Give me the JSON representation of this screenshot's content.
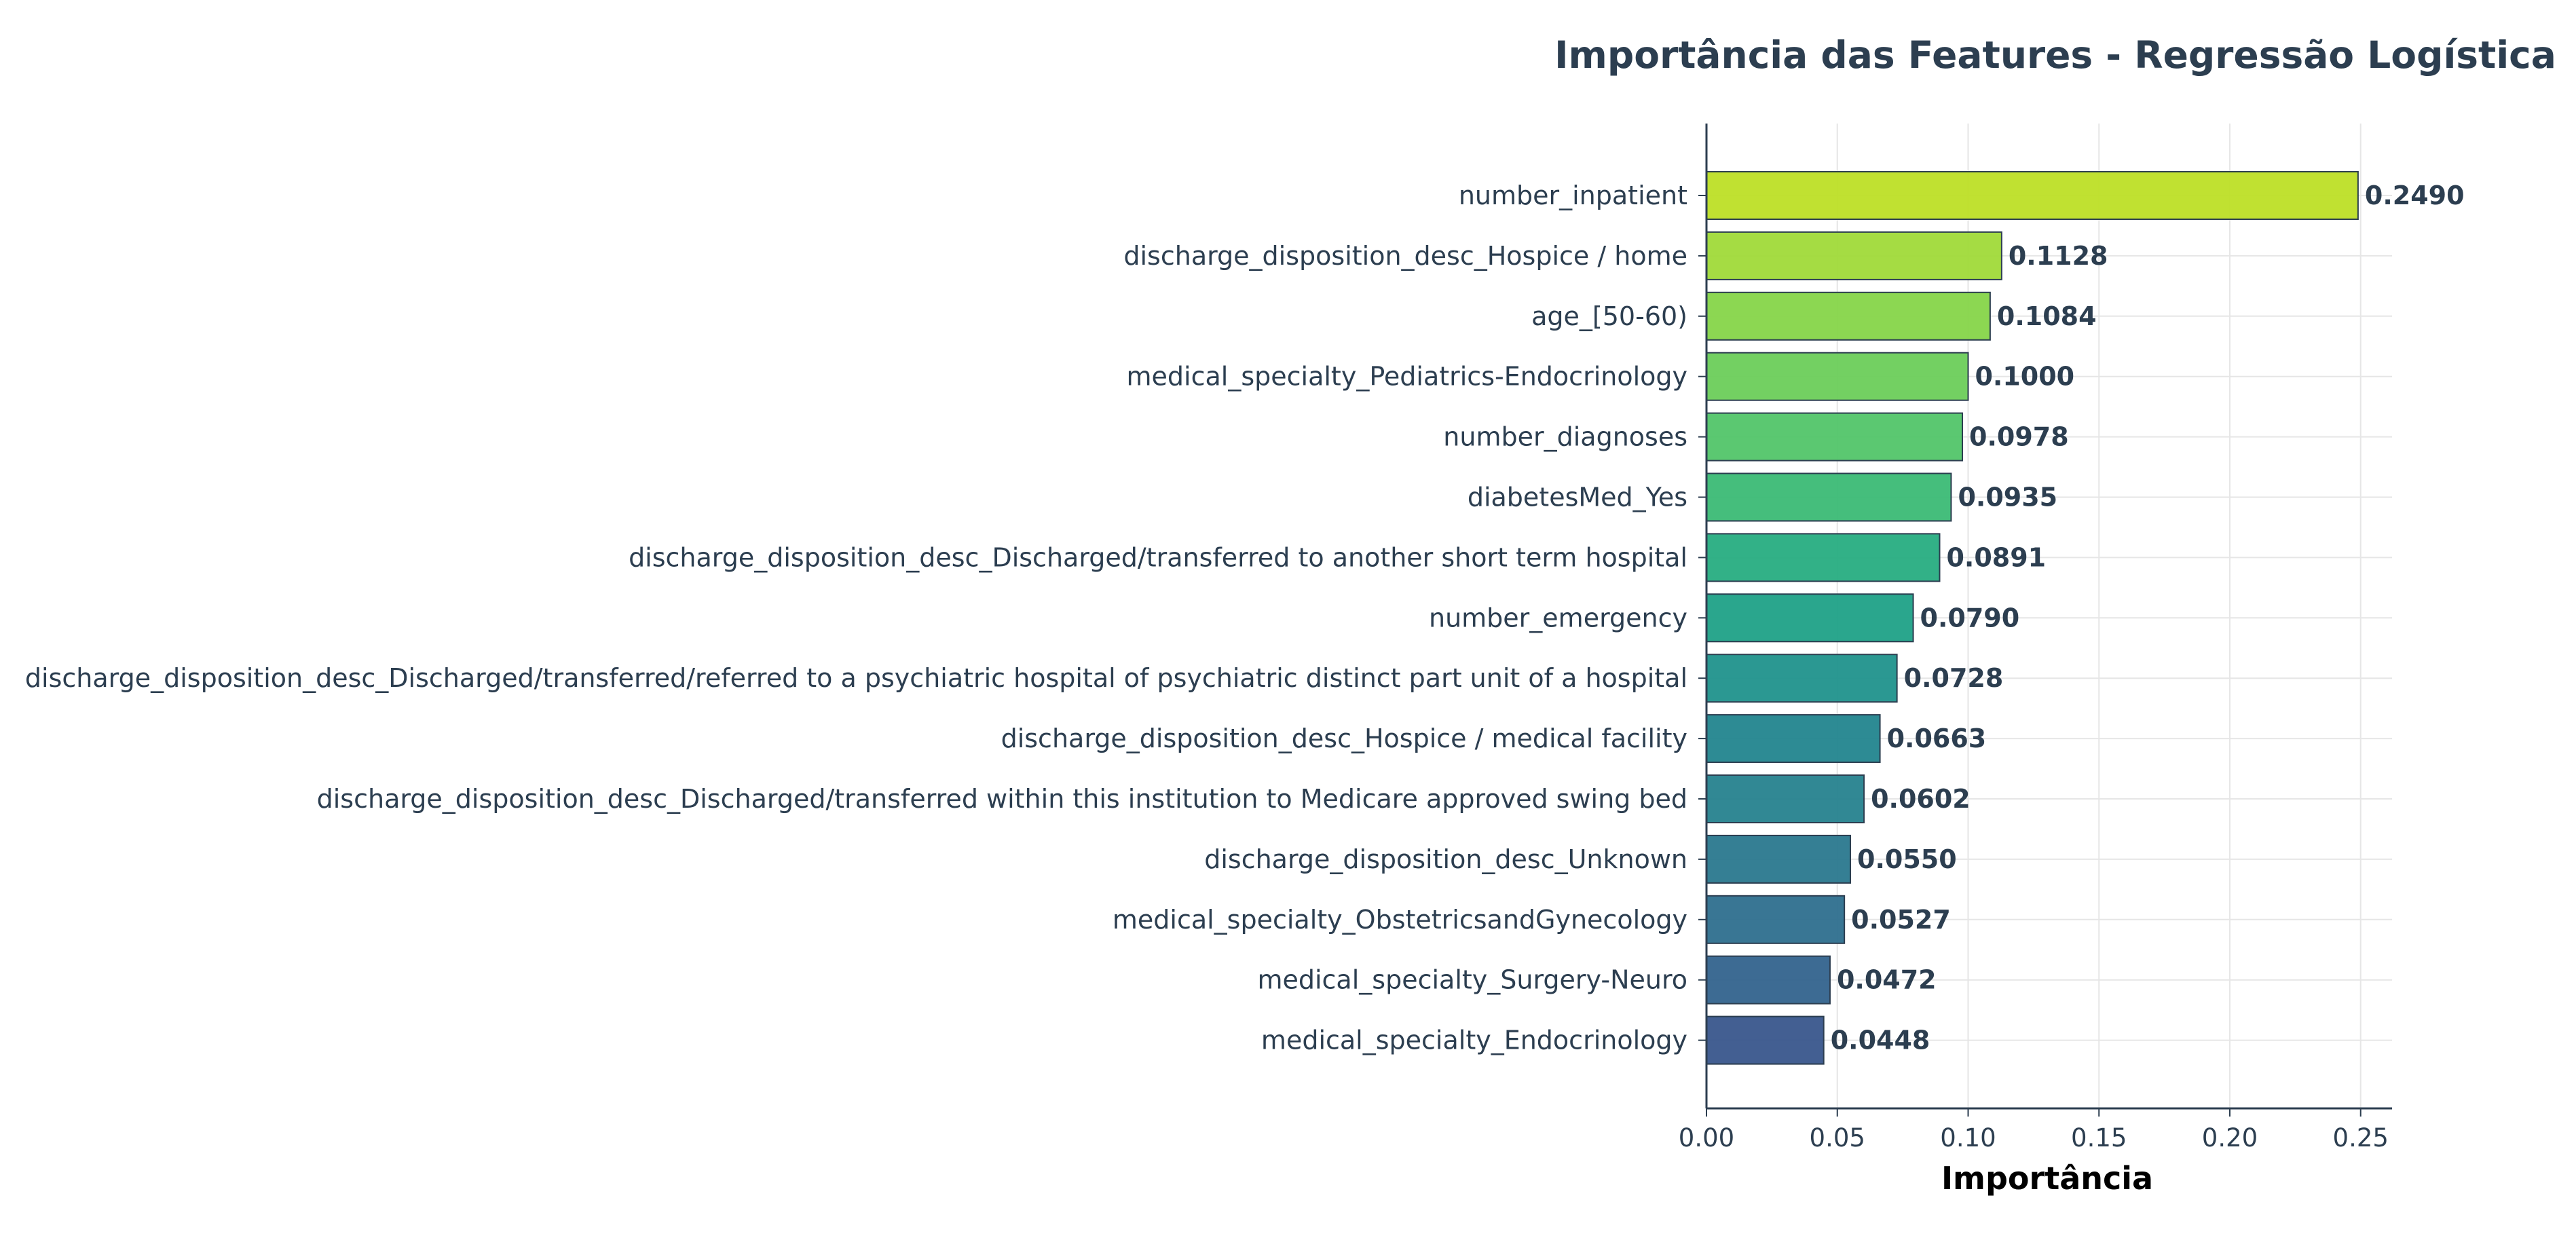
{
  "chart_data": {
    "type": "bar",
    "orientation": "horizontal",
    "title": "Importância das Features - Regressão Logística",
    "xlabel": "Importância",
    "ylabel": "",
    "xlim": [
      0,
      0.262
    ],
    "xticks": [
      0.0,
      0.05,
      0.1,
      0.15,
      0.2,
      0.25
    ],
    "xtick_labels": [
      "0.00",
      "0.05",
      "0.10",
      "0.15",
      "0.20",
      "0.25"
    ],
    "grid": true,
    "categories": [
      "number_inpatient",
      "discharge_disposition_desc_Hospice / home",
      "age_[50-60)",
      "medical_specialty_Pediatrics-Endocrinology",
      "number_diagnoses",
      "diabetesMed_Yes",
      "discharge_disposition_desc_Discharged/transferred to another short term hospital",
      "number_emergency",
      "discharge_disposition_desc_Discharged/transferred/referred to a psychiatric hospital of psychiatric distinct part unit of a hospital",
      "discharge_disposition_desc_Hospice / medical facility",
      "discharge_disposition_desc_Discharged/transferred within this institution to Medicare approved swing bed",
      "discharge_disposition_desc_Unknown",
      "medical_specialty_ObstetricsandGynecology",
      "medical_specialty_Surgery-Neuro",
      "medical_specialty_Endocrinology"
    ],
    "values": [
      0.249,
      0.1128,
      0.1084,
      0.1,
      0.0978,
      0.0935,
      0.0891,
      0.079,
      0.0728,
      0.0663,
      0.0602,
      0.055,
      0.0527,
      0.0472,
      0.0448
    ],
    "value_labels": [
      "0.2490",
      "0.1128",
      "0.1084",
      "0.1000",
      "0.0978",
      "0.0935",
      "0.0891",
      "0.0790",
      "0.0728",
      "0.0663",
      "0.0602",
      "0.0550",
      "0.0527",
      "0.0472",
      "0.0448"
    ],
    "colors": [
      "#bddf26",
      "#a0da39",
      "#86d549",
      "#6ccd5a",
      "#52c569",
      "#3bbb75",
      "#27ad81",
      "#1fa187",
      "#20928c",
      "#22858e",
      "#26828e",
      "#2a788e",
      "#2e6f8e",
      "#33638d",
      "#39568c"
    ],
    "text_color": "#2c3e50",
    "bar_edge_color": "#2c3e50"
  }
}
